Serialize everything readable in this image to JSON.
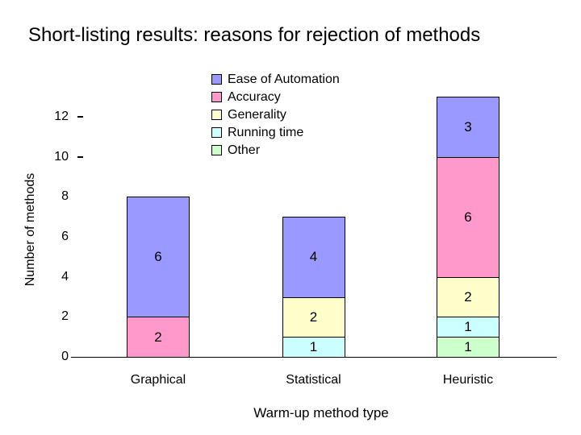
{
  "slide": {
    "title": "Short-listing results: reasons for rejection of methods"
  },
  "chart_data": {
    "type": "bar",
    "stacked": true,
    "title": "Short-listing results: reasons for rejection of methods",
    "categories": [
      "Graphical",
      "Statistical",
      "Heuristic"
    ],
    "series": [
      {
        "name": "Ease of Automation",
        "color": "#9999FF",
        "values": [
          6,
          4,
          3
        ]
      },
      {
        "name": "Accuracy",
        "color": "#FF99CC",
        "values": [
          2,
          0,
          6
        ]
      },
      {
        "name": "Generality",
        "color": "#FFFFCC",
        "values": [
          0,
          2,
          2
        ]
      },
      {
        "name": "Running time",
        "color": "#CCFFFF",
        "values": [
          0,
          1,
          1
        ]
      },
      {
        "name": "Other",
        "color": "#CCFFCC",
        "values": [
          0,
          0,
          1
        ]
      }
    ],
    "stack_order_bottom_to_top": [
      "Other",
      "Running time",
      "Generality",
      "Accuracy",
      "Ease of Automation"
    ],
    "data_labels": true,
    "xlabel": "Warm-up method type",
    "ylabel": "Number of methods",
    "ylim": [
      0,
      12
    ],
    "yticks": [
      12,
      10,
      8,
      6,
      4,
      2,
      0
    ],
    "yticks_with_dash": [
      12,
      10
    ],
    "legend_position": "top-center",
    "grid": false,
    "colors": {
      "axis_line": "#000000",
      "text": "#000000",
      "background": "#FFFFFF"
    }
  }
}
